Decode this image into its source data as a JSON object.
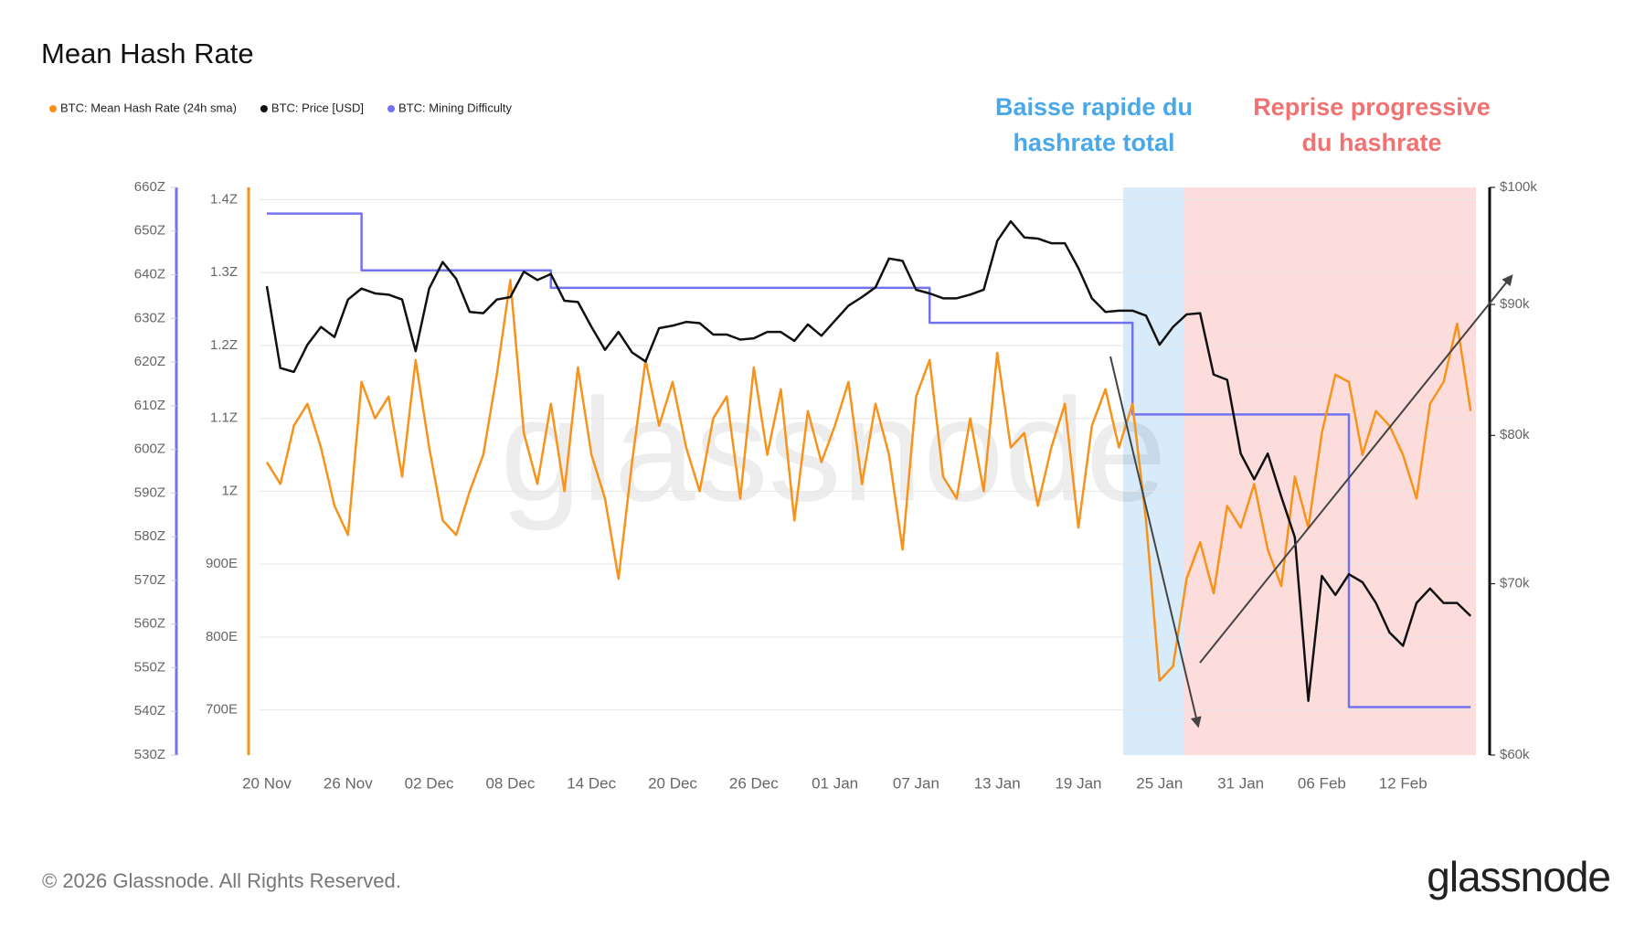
{
  "chart_data": {
    "type": "line",
    "title": "Mean Hash Rate",
    "categories": [
      "20 Nov",
      null,
      null,
      null,
      null,
      null,
      "26 Nov",
      null,
      null,
      null,
      null,
      null,
      "02 Dec",
      null,
      null,
      null,
      null,
      null,
      "08 Dec",
      null,
      null,
      null,
      null,
      null,
      "14 Dec",
      null,
      null,
      null,
      null,
      null,
      "20 Dec",
      null,
      null,
      null,
      null,
      null,
      "26 Dec",
      null,
      null,
      null,
      null,
      null,
      "01 Jan",
      null,
      null,
      null,
      null,
      null,
      "07 Jan",
      null,
      null,
      null,
      null,
      null,
      "13 Jan",
      null,
      null,
      null,
      null,
      null,
      "19 Jan",
      null,
      null,
      null,
      null,
      null,
      "25 Jan",
      null,
      null,
      null,
      null,
      null,
      "31 Jan",
      null,
      null,
      null,
      null,
      null,
      "06 Feb",
      null,
      null,
      null,
      null,
      null,
      "12 Feb",
      null,
      null,
      null,
      null,
      null
    ],
    "series": [
      {
        "name": "BTC: Mean Hash Rate (24h sma)",
        "color": "#f7931a",
        "values": [
          1040,
          1010,
          1090,
          1120,
          1060,
          980,
          940,
          1150,
          1100,
          1130,
          1020,
          1180,
          1060,
          960,
          940,
          1000,
          1050,
          1160,
          1290,
          1080,
          1010,
          1120,
          1000,
          1170,
          1050,
          990,
          880,
          1040,
          1180,
          1090,
          1150,
          1060,
          1000,
          1100,
          1130,
          990,
          1170,
          1050,
          1140,
          960,
          1110,
          1040,
          1090,
          1150,
          1010,
          1120,
          1050,
          920,
          1130,
          1180,
          1020,
          990,
          1100,
          1000,
          1190,
          1060,
          1080,
          980,
          1060,
          1120,
          950,
          1090,
          1140,
          1060,
          1120,
          960,
          740,
          760,
          880,
          930,
          860,
          980,
          950,
          1010,
          920,
          870,
          1020,
          950,
          1080,
          1160,
          1150,
          1050,
          1110,
          1090,
          1050,
          990,
          1120,
          1150,
          1230,
          1110
        ]
      },
      {
        "name": "BTC: Price [USD]",
        "color": "#111111",
        "axis": "y2",
        "values": [
          91500,
          85000,
          84700,
          86800,
          88200,
          87400,
          90400,
          91300,
          90900,
          90800,
          90400,
          86300,
          91300,
          93500,
          92100,
          89400,
          89300,
          90400,
          90600,
          92700,
          92000,
          92500,
          90300,
          90200,
          88200,
          86400,
          87800,
          86200,
          85500,
          88100,
          88300,
          88600,
          88500,
          87600,
          87600,
          87200,
          87300,
          87800,
          87800,
          87100,
          88400,
          87500,
          88700,
          89900,
          90600,
          91400,
          93800,
          93600,
          91200,
          90900,
          90500,
          90500,
          90800,
          91200,
          95300,
          97000,
          95600,
          95500,
          95100,
          95100,
          93000,
          90500,
          89400,
          89500,
          89500,
          89100,
          86800,
          88200,
          89200,
          89300,
          84500,
          84100,
          78700,
          76900,
          78700,
          75700,
          73000,
          63000,
          70500,
          69300,
          70600,
          70100,
          68800,
          67000,
          66200,
          68800,
          69700,
          68800,
          68800,
          68000
        ]
      },
      {
        "name": "BTC: Mining Difficulty",
        "color": "#7373f2",
        "axis": "y3",
        "step": true,
        "values": [
          654,
          654,
          654,
          654,
          654,
          654,
          654,
          641,
          641,
          641,
          641,
          641,
          641,
          641,
          641,
          641,
          641,
          641,
          641,
          641,
          641,
          637,
          637,
          637,
          637,
          637,
          637,
          637,
          637,
          637,
          637,
          637,
          637,
          637,
          637,
          637,
          637,
          637,
          637,
          637,
          637,
          637,
          637,
          637,
          637,
          637,
          637,
          637,
          637,
          629,
          629,
          629,
          629,
          629,
          629,
          629,
          629,
          629,
          629,
          629,
          629,
          629,
          629,
          629,
          608,
          608,
          608,
          608,
          608,
          608,
          608,
          608,
          608,
          608,
          608,
          608,
          608,
          608,
          608,
          608,
          541,
          541,
          541,
          541,
          541,
          541,
          541,
          541,
          541,
          541
        ]
      }
    ],
    "ylim": [
      638,
      1417
    ],
    "yticks": [
      {
        "value": 700,
        "label": "700E"
      },
      {
        "value": 800,
        "label": "800E"
      },
      {
        "value": 900,
        "label": "900E"
      },
      {
        "value": 1000,
        "label": "1Z"
      },
      {
        "value": 1100,
        "label": "1.1Z"
      },
      {
        "value": 1200,
        "label": "1.2Z"
      },
      {
        "value": 1300,
        "label": "1.3Z"
      },
      {
        "value": 1400,
        "label": "1.4Z"
      }
    ],
    "y2lim": [
      60000,
      100000
    ],
    "y2scale": "log",
    "y2ticks": [
      {
        "value": 60000,
        "label": "$60k"
      },
      {
        "value": 70000,
        "label": "$70k"
      },
      {
        "value": 80000,
        "label": "$80k"
      },
      {
        "value": 90000,
        "label": "$90k"
      },
      {
        "value": 100000,
        "label": "$100k"
      }
    ],
    "y3lim": [
      530,
      660
    ],
    "y3ticks": [
      {
        "value": 530,
        "label": "530Z"
      },
      {
        "value": 540,
        "label": "540Z"
      },
      {
        "value": 550,
        "label": "550Z"
      },
      {
        "value": 560,
        "label": "560Z"
      },
      {
        "value": 570,
        "label": "570Z"
      },
      {
        "value": 580,
        "label": "580Z"
      },
      {
        "value": 590,
        "label": "590Z"
      },
      {
        "value": 600,
        "label": "600Z"
      },
      {
        "value": 610,
        "label": "610Z"
      },
      {
        "value": 620,
        "label": "620Z"
      },
      {
        "value": 630,
        "label": "630Z"
      },
      {
        "value": 640,
        "label": "640Z"
      },
      {
        "value": 650,
        "label": "650Z"
      },
      {
        "value": 660,
        "label": "660Z"
      }
    ],
    "grid": true,
    "legend": "top-left",
    "annotations": [
      {
        "text": [
          "Baisse rapide du",
          "hashrate total"
        ],
        "color": "#4aa8e8"
      },
      {
        "text": [
          "Reprise progressive",
          "du hashrate"
        ],
        "color": "#f07272"
      }
    ],
    "watermark": "glassnode",
    "footer": "© 2026 Glassnode. All Rights Reserved.",
    "logo": "glassnode"
  }
}
